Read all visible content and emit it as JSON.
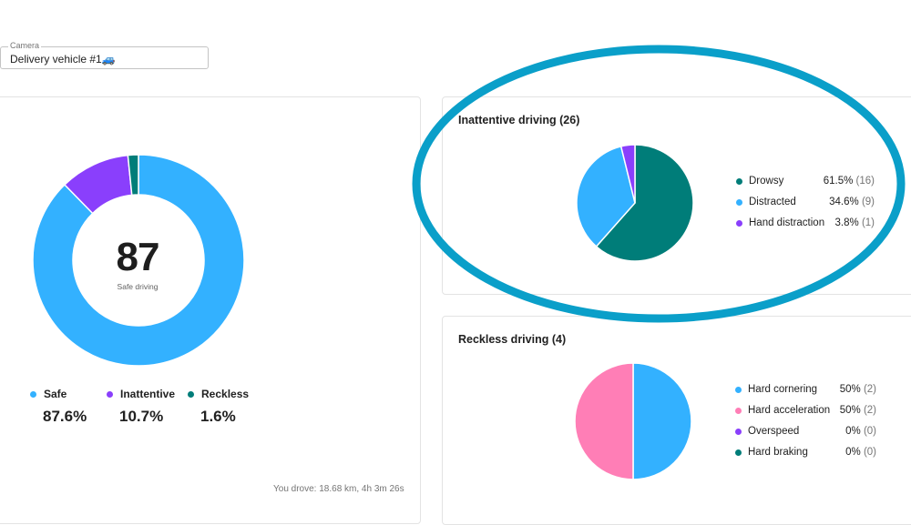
{
  "camera": {
    "label": "Camera",
    "value": "Delivery vehicle #1🚙"
  },
  "overview": {
    "score": "87",
    "score_label": "Safe driving",
    "stats": [
      {
        "name": "Safe",
        "value": "87.6%",
        "color": "#33b1ff"
      },
      {
        "name": "Inattentive",
        "value": "10.7%",
        "color": "#8a3ffc"
      },
      {
        "name": "Reckless",
        "value": "1.6%",
        "color": "#007d79"
      }
    ],
    "donut_fractions": [
      0.876,
      0.107,
      0.016
    ],
    "drove": "You drove: 18.68 km, 4h 3m 26s"
  },
  "inattentive": {
    "title": "Inattentive driving (26)",
    "items": [
      {
        "name": "Drowsy",
        "pct": "61.5%",
        "count": "(16)",
        "value": 16,
        "color": "#007d79"
      },
      {
        "name": "Distracted",
        "pct": "34.6%",
        "count": "(9)",
        "value": 9,
        "color": "#33b1ff"
      },
      {
        "name": "Hand distraction",
        "pct": "3.8%",
        "count": "(1)",
        "value": 1,
        "color": "#8a3ffc"
      }
    ]
  },
  "reckless": {
    "title": "Reckless driving (4)",
    "items": [
      {
        "name": "Hard cornering",
        "pct": "50%",
        "count": "(2)",
        "value": 2,
        "color": "#33b1ff"
      },
      {
        "name": "Hard acceleration",
        "pct": "50%",
        "count": "(2)",
        "value": 2,
        "color": "#ff7eb6"
      },
      {
        "name": "Overspeed",
        "pct": "0%",
        "count": "(0)",
        "value": 0,
        "color": "#8a3ffc"
      },
      {
        "name": "Hard braking",
        "pct": "0%",
        "count": "(0)",
        "value": 0,
        "color": "#007d79"
      }
    ]
  },
  "highlight_color": "#0a9fc9"
}
